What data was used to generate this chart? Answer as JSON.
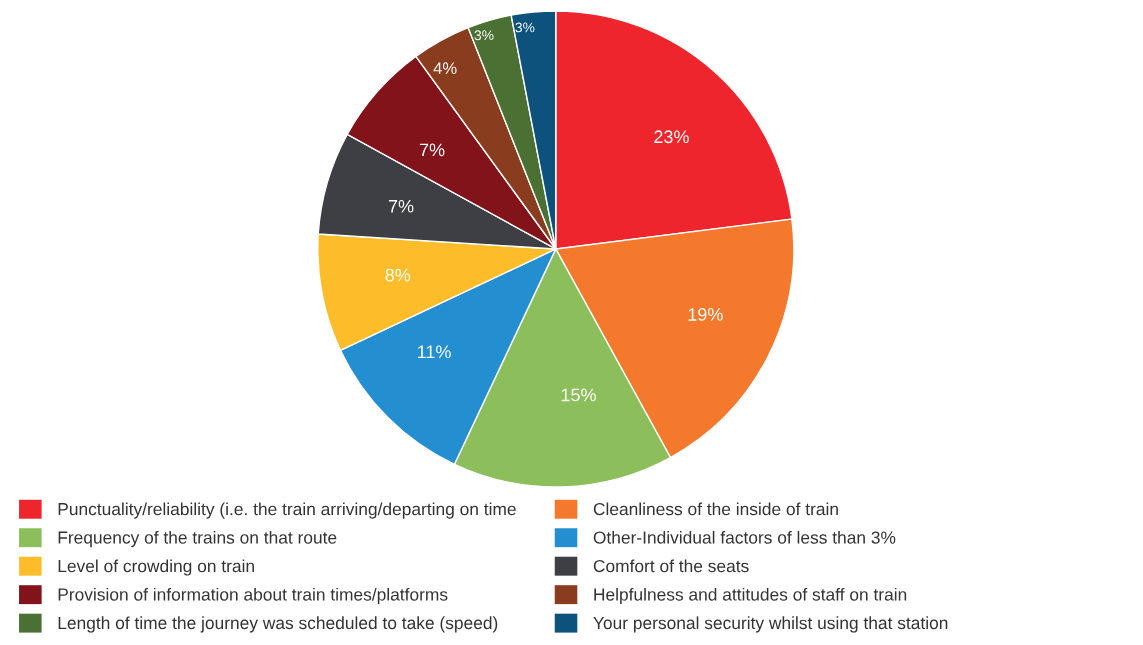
{
  "chart_data": {
    "type": "pie",
    "categories": [
      "Punctuality/reliability (i.e. the train arriving/departing on time",
      "Cleanliness of the inside of train",
      "Frequency of the trains on that route",
      "Other-Individual factors of less than 3%",
      "Level of crowding on train",
      "Comfort of the seats",
      "Provision of information about train times/platforms",
      "Helpfulness and attitudes of staff on train",
      "Length of time the journey was scheduled to take (speed)",
      "Your personal security whilst using that station"
    ],
    "values": [
      23,
      19,
      15,
      11,
      8,
      7,
      7,
      4,
      3,
      3
    ],
    "colors": [
      "#ee252c",
      "#f4792c",
      "#8cbf5c",
      "#238fd0",
      "#fdbd2a",
      "#3d3f44",
      "#83131a",
      "#8a3d1e",
      "#4a7133",
      "#0c527c"
    ],
    "value_labels": [
      "23%",
      "19%",
      "15%",
      "11%",
      "8%",
      "7%",
      "7%",
      "4%",
      "3%",
      "3%"
    ],
    "legend": "bottom"
  }
}
